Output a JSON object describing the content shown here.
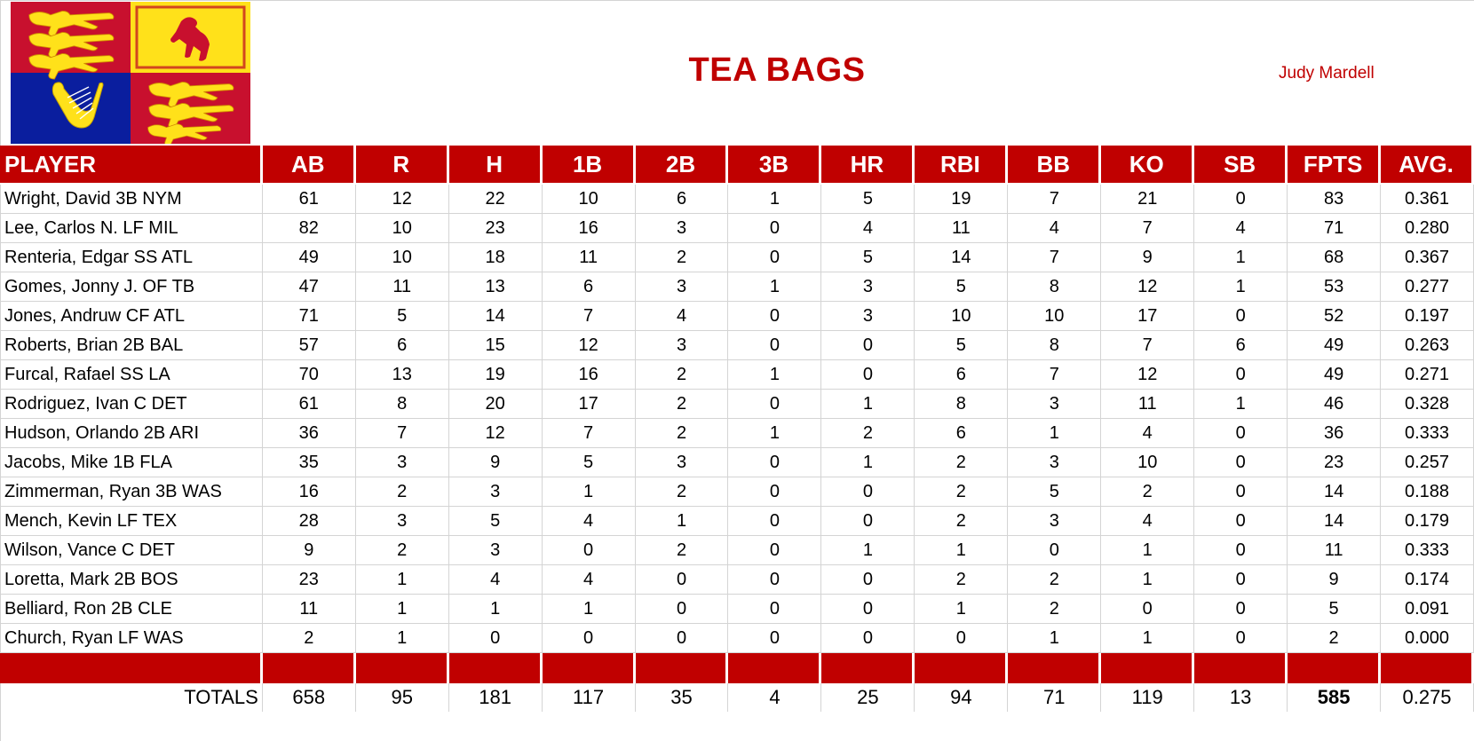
{
  "header": {
    "title": "TEA BAGS",
    "owner": "Judy Mardell",
    "logo": "royal-standard-flag-icon"
  },
  "colors": {
    "accent_red": "#c00000",
    "flag_red": "#c8102e",
    "flag_yellow": "#ffe11a",
    "flag_blue": "#0a1e9e",
    "grid": "#d4d4d4"
  },
  "table": {
    "columns": [
      "PLAYER",
      "AB",
      "R",
      "H",
      "1B",
      "2B",
      "3B",
      "HR",
      "RBI",
      "BB",
      "KO",
      "SB",
      "FPTS",
      "AVG."
    ],
    "rows": [
      {
        "player": "Wright, David 3B NYM",
        "vals": [
          "61",
          "12",
          "22",
          "10",
          "6",
          "1",
          "5",
          "19",
          "7",
          "21",
          "0",
          "83",
          "0.361"
        ]
      },
      {
        "player": "Lee, Carlos N. LF MIL",
        "vals": [
          "82",
          "10",
          "23",
          "16",
          "3",
          "0",
          "4",
          "11",
          "4",
          "7",
          "4",
          "71",
          "0.280"
        ]
      },
      {
        "player": "Renteria, Edgar SS ATL",
        "vals": [
          "49",
          "10",
          "18",
          "11",
          "2",
          "0",
          "5",
          "14",
          "7",
          "9",
          "1",
          "68",
          "0.367"
        ]
      },
      {
        "player": "Gomes, Jonny J. OF TB",
        "vals": [
          "47",
          "11",
          "13",
          "6",
          "3",
          "1",
          "3",
          "5",
          "8",
          "12",
          "1",
          "53",
          "0.277"
        ]
      },
      {
        "player": "Jones, Andruw CF ATL",
        "vals": [
          "71",
          "5",
          "14",
          "7",
          "4",
          "0",
          "3",
          "10",
          "10",
          "17",
          "0",
          "52",
          "0.197"
        ]
      },
      {
        "player": "Roberts, Brian 2B BAL",
        "vals": [
          "57",
          "6",
          "15",
          "12",
          "3",
          "0",
          "0",
          "5",
          "8",
          "7",
          "6",
          "49",
          "0.263"
        ]
      },
      {
        "player": "Furcal, Rafael SS LA",
        "vals": [
          "70",
          "13",
          "19",
          "16",
          "2",
          "1",
          "0",
          "6",
          "7",
          "12",
          "0",
          "49",
          "0.271"
        ]
      },
      {
        "player": "Rodriguez, Ivan C DET",
        "vals": [
          "61",
          "8",
          "20",
          "17",
          "2",
          "0",
          "1",
          "8",
          "3",
          "11",
          "1",
          "46",
          "0.328"
        ]
      },
      {
        "player": "Hudson, Orlando 2B ARI",
        "vals": [
          "36",
          "7",
          "12",
          "7",
          "2",
          "1",
          "2",
          "6",
          "1",
          "4",
          "0",
          "36",
          "0.333"
        ]
      },
      {
        "player": "Jacobs, Mike 1B FLA",
        "vals": [
          "35",
          "3",
          "9",
          "5",
          "3",
          "0",
          "1",
          "2",
          "3",
          "10",
          "0",
          "23",
          "0.257"
        ]
      },
      {
        "player": "Zimmerman, Ryan 3B WAS",
        "vals": [
          "16",
          "2",
          "3",
          "1",
          "2",
          "0",
          "0",
          "2",
          "5",
          "2",
          "0",
          "14",
          "0.188"
        ]
      },
      {
        "player": "Mench, Kevin LF TEX",
        "vals": [
          "28",
          "3",
          "5",
          "4",
          "1",
          "0",
          "0",
          "2",
          "3",
          "4",
          "0",
          "14",
          "0.179"
        ]
      },
      {
        "player": "Wilson, Vance C DET",
        "vals": [
          "9",
          "2",
          "3",
          "0",
          "2",
          "0",
          "1",
          "1",
          "0",
          "1",
          "0",
          "11",
          "0.333"
        ]
      },
      {
        "player": "Loretta, Mark 2B BOS",
        "vals": [
          "23",
          "1",
          "4",
          "4",
          "0",
          "0",
          "0",
          "2",
          "2",
          "1",
          "0",
          "9",
          "0.174"
        ]
      },
      {
        "player": "Belliard, Ron 2B CLE",
        "vals": [
          "11",
          "1",
          "1",
          "1",
          "0",
          "0",
          "0",
          "1",
          "2",
          "0",
          "0",
          "5",
          "0.091"
        ]
      },
      {
        "player": "Church, Ryan LF WAS",
        "vals": [
          "2",
          "1",
          "0",
          "0",
          "0",
          "0",
          "0",
          "0",
          "1",
          "1",
          "0",
          "2",
          "0.000"
        ]
      }
    ],
    "totals": {
      "label": "TOTALS",
      "vals": [
        "658",
        "95",
        "181",
        "117",
        "35",
        "4",
        "25",
        "94",
        "71",
        "119",
        "13",
        "585",
        "0.275"
      ]
    }
  }
}
